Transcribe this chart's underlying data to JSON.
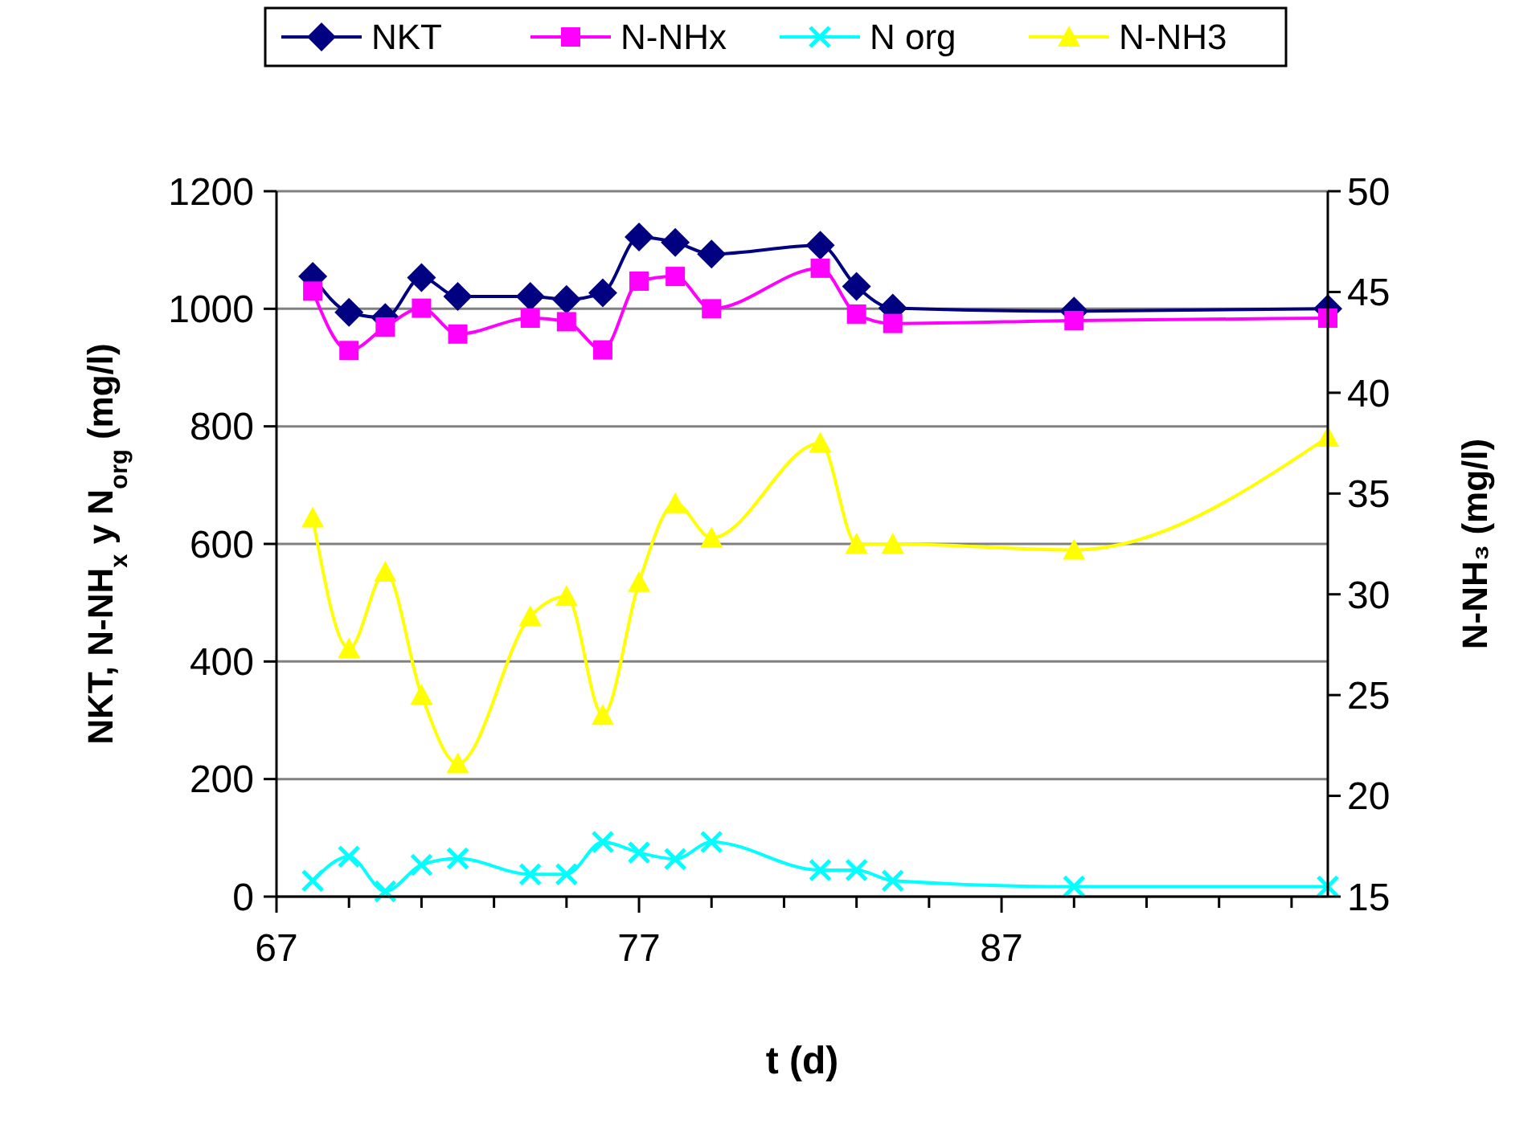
{
  "chart_data": {
    "type": "line",
    "xlabel": "t (d)",
    "ylabel": "NKT, N-NH$_{x}$ y N$_{org}$ (mg/l)",
    "y2label": "N-NH₃ (mg/l)",
    "x": [
      68,
      69,
      70,
      71,
      72,
      74,
      75,
      76,
      77,
      78,
      79,
      82,
      83,
      84,
      89,
      96
    ],
    "series": [
      {
        "name": "NKT",
        "color": "#000080",
        "marker": "diamond",
        "values": [
          1055,
          994,
          985,
          1053,
          1021,
          1021,
          1016,
          1027,
          1122,
          1113,
          1093,
          1108,
          1038,
          1001,
          996,
          1000
        ]
      },
      {
        "name": "N-NHx",
        "color": "#ff00ff",
        "marker": "square",
        "values": [
          1030,
          929,
          969,
          1001,
          957,
          984,
          978,
          930,
          1047,
          1055,
          1000,
          1069,
          991,
          975,
          980,
          984
        ]
      },
      {
        "name": "N org",
        "color": "#00ffff",
        "marker": "cross",
        "values": [
          27,
          68,
          9,
          54,
          65,
          38,
          38,
          93,
          75,
          64,
          93,
          45,
          45,
          27,
          17,
          17
        ]
      },
      {
        "name": "N-NH3",
        "color": "#ffff00",
        "marker": "triangle",
        "axis": "y2",
        "values": [
          33.8,
          27.3,
          31.1,
          25.0,
          21.6,
          28.9,
          29.9,
          24.0,
          30.6,
          34.5,
          32.8,
          37.5,
          32.5,
          32.5,
          32.2,
          37.8
        ]
      }
    ],
    "xlim": [
      67,
      96
    ],
    "xticks": [
      67,
      {
        "value": 69,
        "label": null
      },
      {
        "value": 71,
        "label": null
      },
      {
        "value": 73,
        "label": null
      },
      {
        "value": 75,
        "label": null
      },
      77,
      {
        "value": 79,
        "label": null
      },
      {
        "value": 81,
        "label": null
      },
      {
        "value": 83,
        "label": null
      },
      {
        "value": 85,
        "label": null
      },
      87,
      {
        "value": 89,
        "label": null
      },
      {
        "value": 91,
        "label": null
      },
      {
        "value": 93,
        "label": null
      },
      {
        "value": 95,
        "label": null
      }
    ],
    "ylim": [
      0,
      1200
    ],
    "yticks": [
      0,
      200,
      400,
      600,
      800,
      1000,
      1200
    ],
    "y2lim": [
      15,
      50
    ],
    "y2ticks": [
      15,
      20,
      25,
      30,
      35,
      40,
      45,
      50
    ],
    "grid": "y",
    "legend": "top"
  }
}
